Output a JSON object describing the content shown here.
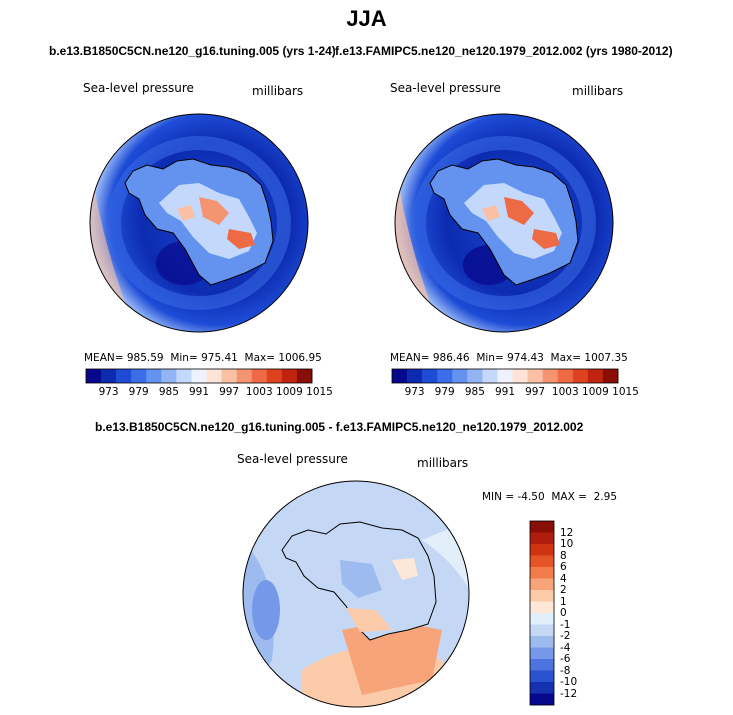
{
  "figure": {
    "season": "JJA",
    "case1_title": "b.e13.B1850C5CN.ne120_g16.tuning.005 (yrs 1-24)",
    "case2_title": "f.e13.FAMIPC5.ne120_ne120.1979_2012.002 (yrs 1980-2012)",
    "diff_title": "b.e13.B1850C5CN.ne120_g16.tuning.005 - f.e13.FAMIPC5.ne120_ne120.1979_2012.002"
  },
  "chart_data": [
    {
      "type": "heatmap",
      "projection": "south-polar stereographic",
      "variable": "Sea-level pressure",
      "units": "millibars",
      "stats": {
        "mean_label": "MEAN=",
        "mean": "985.59",
        "min_label": "Min=",
        "min": "975.41",
        "max_label": "Max=",
        "max": "1006.95"
      },
      "colorbar": {
        "orientation": "horizontal",
        "levels": [
          973,
          979,
          985,
          991,
          997,
          1003,
          1009,
          1015
        ]
      }
    },
    {
      "type": "heatmap",
      "projection": "south-polar stereographic",
      "variable": "Sea-level pressure",
      "units": "millibars",
      "stats": {
        "mean_label": "MEAN=",
        "mean": "986.46",
        "min_label": "Min=",
        "min": "974.43",
        "max_label": "Max=",
        "max": "1007.35"
      },
      "colorbar": {
        "orientation": "horizontal",
        "levels": [
          973,
          979,
          985,
          991,
          997,
          1003,
          1009,
          1015
        ]
      }
    },
    {
      "type": "heatmap",
      "projection": "south-polar stereographic",
      "variable": "Sea-level pressure",
      "units": "millibars",
      "stats": {
        "min_label": "MIN =",
        "min": "-4.50",
        "max_label": "MAX =",
        "max": "2.95"
      },
      "colorbar": {
        "orientation": "vertical",
        "levels": [
          12,
          10,
          8,
          6,
          4,
          2,
          1,
          0,
          -1,
          -2,
          -4,
          -6,
          -8,
          -10,
          -12
        ]
      }
    }
  ],
  "colors": {
    "abs_scale": [
      "#08088c",
      "#0c2bb0",
      "#1e4cd6",
      "#3a6ee8",
      "#6392ef",
      "#93b5f5",
      "#c4d8fb",
      "#eef2fc",
      "#fde4d6",
      "#f9c0a4",
      "#f59470",
      "#ee6a44",
      "#de421f",
      "#c02410",
      "#8a0e08"
    ],
    "diff_scale": [
      "#8a0e08",
      "#b01d0e",
      "#cf3412",
      "#e55426",
      "#f27b4a",
      "#f7a47a",
      "#fbcba9",
      "#fde7d6",
      "#e3eefb",
      "#c4d8f5",
      "#9ebbef",
      "#7599e8",
      "#4d74de",
      "#2a52cf",
      "#1531b0",
      "#08088c"
    ]
  }
}
